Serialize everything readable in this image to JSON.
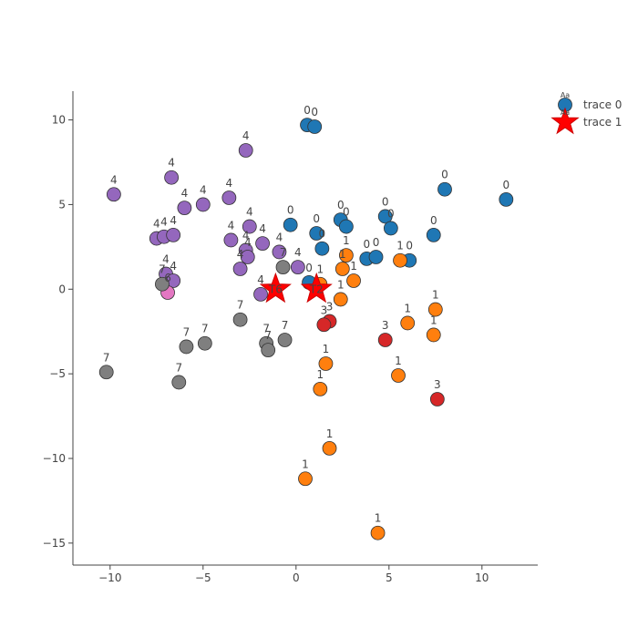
{
  "chart_data": {
    "type": "scatter",
    "title": "",
    "xlabel": "",
    "ylabel": "",
    "xlim": [
      -12,
      13
    ],
    "ylim": [
      -16.3,
      11.7
    ],
    "xticks": [
      -10,
      -5,
      0,
      5,
      10
    ],
    "yticks": [
      -15,
      -10,
      -5,
      0,
      5,
      10
    ],
    "xtick_labels": [
      "−10",
      "−5",
      "0",
      "5",
      "10"
    ],
    "ytick_labels": [
      "−15",
      "−10",
      "−5",
      "0",
      "5",
      "10"
    ],
    "grid": false,
    "legend_position": "top-right",
    "class_colors": {
      "0": "#1f77b4",
      "1": "#ff7f0e",
      "3": "#d62728",
      "4": "#9467bd",
      "6": "#e377c2",
      "7": "#7f7f7f"
    },
    "marker_outline": "#333333",
    "series": [
      {
        "name": "trace 0",
        "marker": "circle",
        "color": "#1f77b4",
        "points": [
          {
            "x": 0.6,
            "y": 9.7,
            "label": "0"
          },
          {
            "x": 1.0,
            "y": 9.6,
            "label": "0"
          },
          {
            "x": 8.0,
            "y": 5.9,
            "label": "0"
          },
          {
            "x": 11.3,
            "y": 5.3,
            "label": "0"
          },
          {
            "x": -0.3,
            "y": 3.8,
            "label": "0"
          },
          {
            "x": 2.4,
            "y": 4.1,
            "label": "0"
          },
          {
            "x": 2.7,
            "y": 3.7,
            "label": "0"
          },
          {
            "x": 1.1,
            "y": 3.3,
            "label": "0"
          },
          {
            "x": 4.8,
            "y": 4.3,
            "label": "0"
          },
          {
            "x": 5.1,
            "y": 3.6,
            "label": "0"
          },
          {
            "x": 7.4,
            "y": 3.2,
            "label": "0"
          },
          {
            "x": 1.4,
            "y": 2.4,
            "label": "0"
          },
          {
            "x": 3.8,
            "y": 1.8,
            "label": "0"
          },
          {
            "x": 4.3,
            "y": 1.9,
            "label": "0"
          },
          {
            "x": 6.1,
            "y": 1.7,
            "label": "0"
          },
          {
            "x": 0.7,
            "y": 0.4,
            "label": "0"
          },
          {
            "x": -9.8,
            "y": 5.6,
            "label": "4"
          },
          {
            "x": -6.7,
            "y": 6.6,
            "label": "4"
          },
          {
            "x": -2.7,
            "y": 8.2,
            "label": "4"
          },
          {
            "x": -6.0,
            "y": 4.8,
            "label": "4"
          },
          {
            "x": -5.0,
            "y": 5.0,
            "label": "4"
          },
          {
            "x": -3.6,
            "y": 5.4,
            "label": "4"
          },
          {
            "x": -7.5,
            "y": 3.0,
            "label": "4"
          },
          {
            "x": -7.1,
            "y": 3.1,
            "label": "4"
          },
          {
            "x": -6.6,
            "y": 3.2,
            "label": "4"
          },
          {
            "x": -2.5,
            "y": 3.7,
            "label": "4"
          },
          {
            "x": -3.5,
            "y": 2.9,
            "label": "4"
          },
          {
            "x": -1.8,
            "y": 2.7,
            "label": "4"
          },
          {
            "x": -2.7,
            "y": 2.3,
            "label": "4"
          },
          {
            "x": -2.6,
            "y": 1.9,
            "label": "4"
          },
          {
            "x": -0.9,
            "y": 2.2,
            "label": "4"
          },
          {
            "x": -3.0,
            "y": 1.2,
            "label": "4"
          },
          {
            "x": 0.1,
            "y": 1.3,
            "label": "4"
          },
          {
            "x": -7.0,
            "y": 0.9,
            "label": "4"
          },
          {
            "x": -6.6,
            "y": 0.5,
            "label": "4"
          },
          {
            "x": -1.9,
            "y": -0.3,
            "label": "4"
          },
          {
            "x": -6.9,
            "y": -0.2,
            "label": "6"
          },
          {
            "x": -0.7,
            "y": 1.3,
            "label": "7"
          },
          {
            "x": -7.2,
            "y": 0.3,
            "label": "7"
          },
          {
            "x": -3.0,
            "y": -1.8,
            "label": "7"
          },
          {
            "x": -5.9,
            "y": -3.4,
            "label": "7"
          },
          {
            "x": -4.9,
            "y": -3.2,
            "label": "7"
          },
          {
            "x": -1.6,
            "y": -3.2,
            "label": "7"
          },
          {
            "x": -1.5,
            "y": -3.6,
            "label": "7"
          },
          {
            "x": -0.6,
            "y": -3.0,
            "label": "7"
          },
          {
            "x": -10.2,
            "y": -4.9,
            "label": "7"
          },
          {
            "x": -6.3,
            "y": -5.5,
            "label": "7"
          },
          {
            "x": 2.7,
            "y": 2.0,
            "label": "1"
          },
          {
            "x": 2.5,
            "y": 1.2,
            "label": "1"
          },
          {
            "x": 3.1,
            "y": 0.5,
            "label": "1"
          },
          {
            "x": 1.3,
            "y": 0.3,
            "label": "1"
          },
          {
            "x": 2.4,
            "y": -0.6,
            "label": "1"
          },
          {
            "x": 5.6,
            "y": 1.7,
            "label": "1"
          },
          {
            "x": 6.0,
            "y": -2.0,
            "label": "1"
          },
          {
            "x": 7.5,
            "y": -1.2,
            "label": "1"
          },
          {
            "x": 7.4,
            "y": -2.7,
            "label": "1"
          },
          {
            "x": 1.6,
            "y": -4.4,
            "label": "1"
          },
          {
            "x": 5.5,
            "y": -5.1,
            "label": "1"
          },
          {
            "x": 1.3,
            "y": -5.9,
            "label": "1"
          },
          {
            "x": 1.8,
            "y": -9.4,
            "label": "1"
          },
          {
            "x": 0.5,
            "y": -11.2,
            "label": "1"
          },
          {
            "x": 4.4,
            "y": -14.4,
            "label": "1"
          },
          {
            "x": 1.8,
            "y": -1.9,
            "label": "3"
          },
          {
            "x": 1.5,
            "y": -2.1,
            "label": "3"
          },
          {
            "x": 4.8,
            "y": -3.0,
            "label": "3"
          },
          {
            "x": 7.6,
            "y": -6.5,
            "label": "3"
          }
        ]
      },
      {
        "name": "trace 1",
        "marker": "star",
        "color": "#ff0000",
        "points": [
          {
            "x": -1.1,
            "y": 0.0,
            "label": "T6"
          },
          {
            "x": 1.1,
            "y": 0.0,
            "label": "T2"
          }
        ]
      }
    ],
    "legend": [
      {
        "name": "trace 0",
        "symbol": "circle",
        "color": "#1f77b4",
        "aa_label": "Aa"
      },
      {
        "name": "trace 1",
        "symbol": "star",
        "color": "#ff0000",
        "aa_label": "Aa"
      }
    ]
  }
}
